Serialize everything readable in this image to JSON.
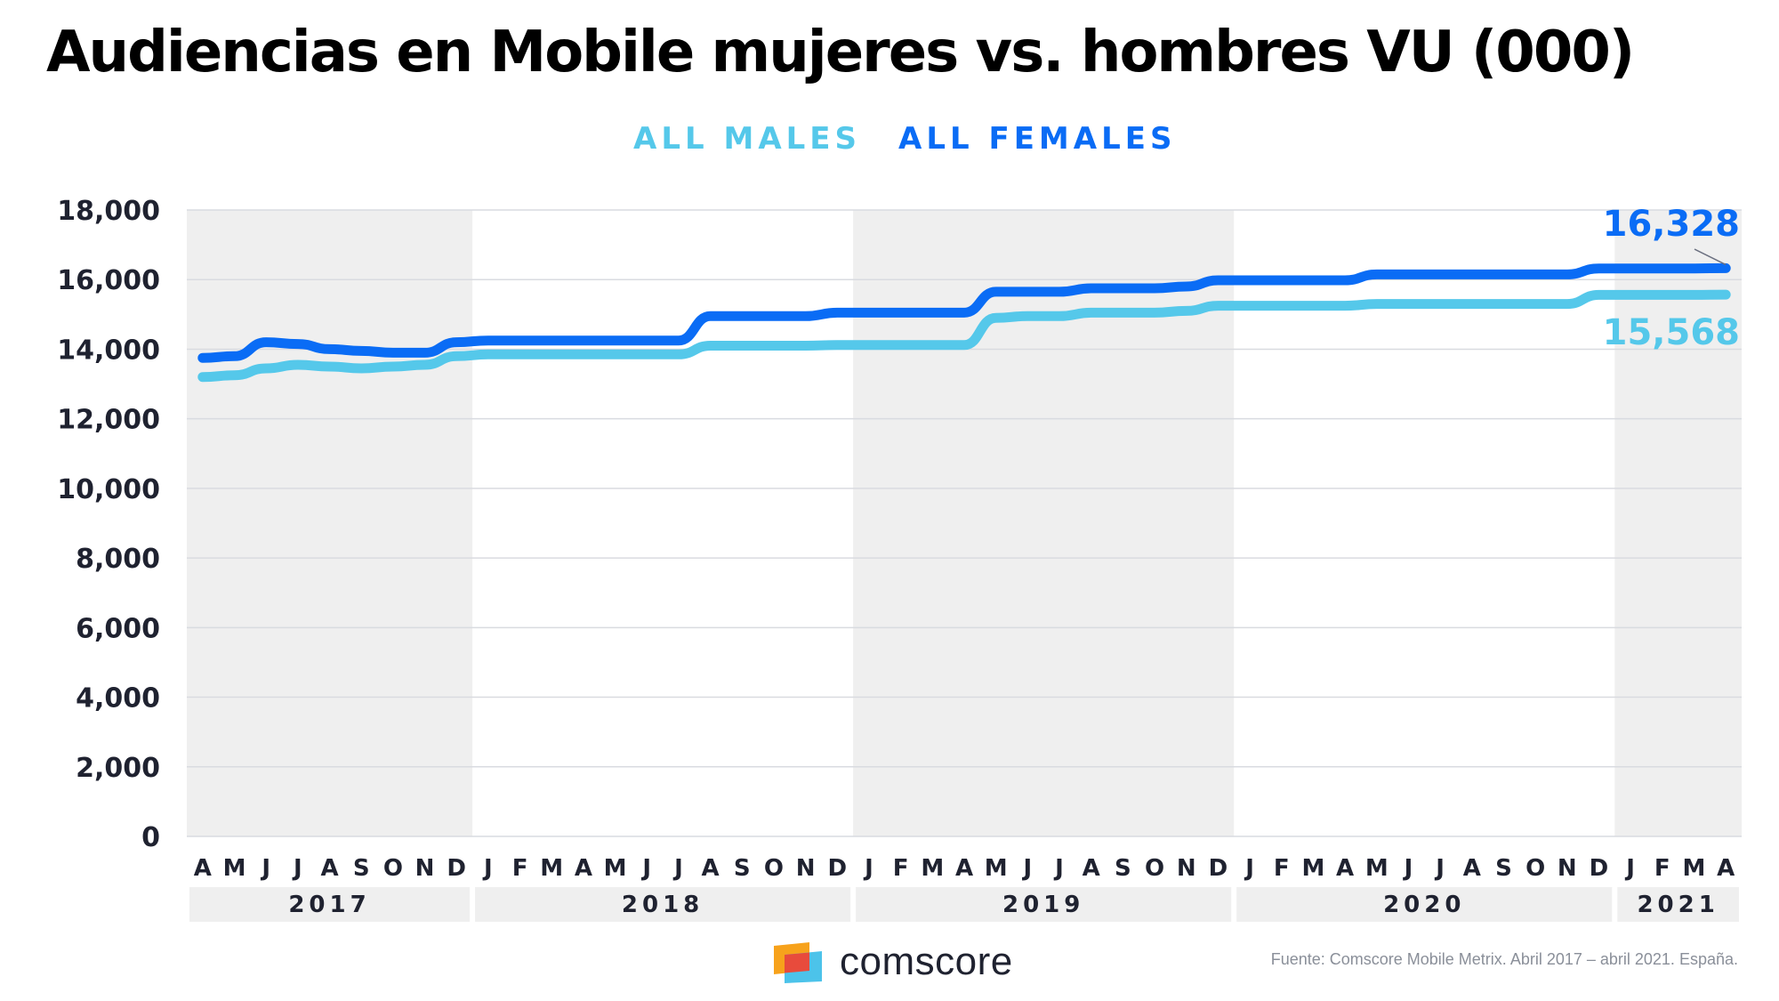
{
  "title": "Audiencias en Mobile mujeres vs. hombres VU (000)",
  "source_note": "Fuente: Comscore Mobile Metrix. Abril 2017 – abril 2021. España.",
  "logo_text": "comscore",
  "colors": {
    "males": "#55c8ea",
    "females": "#0a6cf5",
    "band": "#efefef",
    "grid": "#d9dbe0",
    "axis_text": "#1f2230"
  },
  "chart_data": {
    "type": "line",
    "title": "Audiencias en Mobile mujeres vs. hombres VU (000)",
    "xlabel": "",
    "ylabel": "",
    "ylim": [
      0,
      18000
    ],
    "yticks": [
      0,
      2000,
      4000,
      6000,
      8000,
      10000,
      12000,
      14000,
      16000,
      18000
    ],
    "ytick_labels": [
      "0",
      "2,000",
      "4,000",
      "6,000",
      "8,000",
      "10,000",
      "12,000",
      "14,000",
      "16,000",
      "18,000"
    ],
    "grid": true,
    "legend_position": "top-center",
    "x": [
      "2017-04",
      "2017-05",
      "2017-06",
      "2017-07",
      "2017-08",
      "2017-09",
      "2017-10",
      "2017-11",
      "2017-12",
      "2018-01",
      "2018-02",
      "2018-03",
      "2018-04",
      "2018-05",
      "2018-06",
      "2018-07",
      "2018-08",
      "2018-09",
      "2018-10",
      "2018-11",
      "2018-12",
      "2019-01",
      "2019-02",
      "2019-03",
      "2019-04",
      "2019-05",
      "2019-06",
      "2019-07",
      "2019-08",
      "2019-09",
      "2019-10",
      "2019-11",
      "2019-12",
      "2020-01",
      "2020-02",
      "2020-03",
      "2020-04",
      "2020-05",
      "2020-06",
      "2020-07",
      "2020-08",
      "2020-09",
      "2020-10",
      "2020-11",
      "2020-12",
      "2021-01",
      "2021-02",
      "2021-03",
      "2021-04"
    ],
    "month_labels": [
      "A",
      "M",
      "J",
      "J",
      "A",
      "S",
      "O",
      "N",
      "D",
      "J",
      "F",
      "M",
      "A",
      "M",
      "J",
      "J",
      "A",
      "S",
      "O",
      "N",
      "D",
      "J",
      "F",
      "M",
      "A",
      "M",
      "J",
      "J",
      "A",
      "S",
      "O",
      "N",
      "D",
      "J",
      "F",
      "M",
      "A",
      "M",
      "J",
      "J",
      "A",
      "S",
      "O",
      "N",
      "D",
      "J",
      "F",
      "M",
      "A"
    ],
    "years": [
      {
        "label": "2017",
        "months": 9
      },
      {
        "label": "2018",
        "months": 12
      },
      {
        "label": "2019",
        "months": 12
      },
      {
        "label": "2020",
        "months": 12
      },
      {
        "label": "2021",
        "months": 4
      }
    ],
    "series": [
      {
        "name": "ALL MALES",
        "end_label": "15,568",
        "values": [
          13200,
          13250,
          13450,
          13550,
          13500,
          13450,
          13500,
          13550,
          13800,
          13850,
          13850,
          13850,
          13850,
          13850,
          13850,
          13850,
          14100,
          14100,
          14100,
          14100,
          14120,
          14120,
          14120,
          14120,
          14120,
          14900,
          14950,
          14950,
          15050,
          15050,
          15050,
          15100,
          15250,
          15250,
          15250,
          15250,
          15250,
          15300,
          15300,
          15300,
          15300,
          15300,
          15300,
          15300,
          15560,
          15560,
          15560,
          15560,
          15568
        ]
      },
      {
        "name": "ALL FEMALES",
        "end_label": "16,328",
        "values": [
          13750,
          13800,
          14200,
          14150,
          14000,
          13950,
          13900,
          13900,
          14200,
          14250,
          14250,
          14250,
          14250,
          14250,
          14250,
          14250,
          14950,
          14950,
          14950,
          14950,
          15050,
          15050,
          15050,
          15050,
          15050,
          15650,
          15650,
          15650,
          15750,
          15750,
          15750,
          15800,
          15980,
          15980,
          15980,
          15980,
          15980,
          16150,
          16150,
          16150,
          16150,
          16150,
          16150,
          16150,
          16320,
          16320,
          16320,
          16320,
          16328
        ]
      }
    ]
  }
}
